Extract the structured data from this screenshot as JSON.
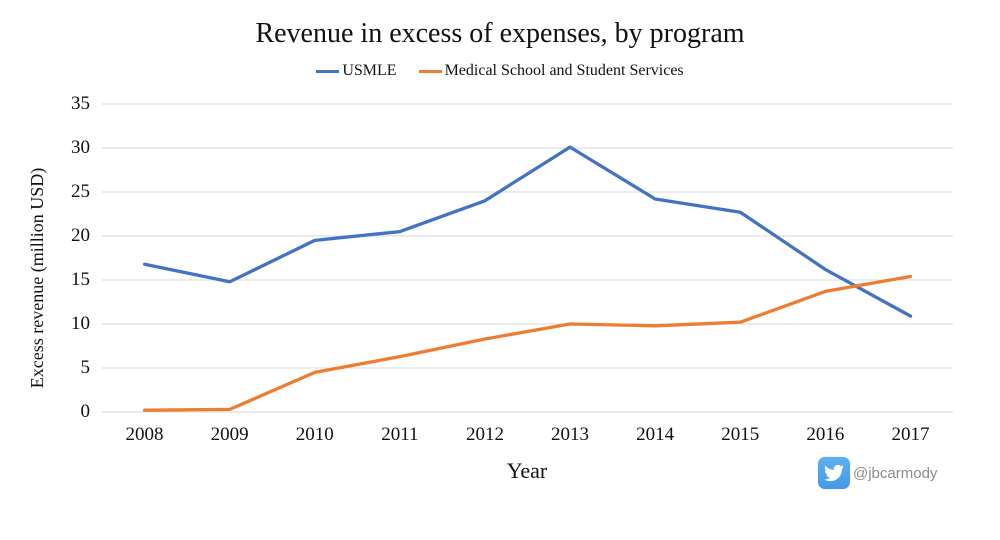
{
  "page": {
    "background": "#ffffff"
  },
  "chart_data": {
    "type": "line",
    "title": "Revenue in excess of expenses, by program",
    "xlabel": "Year",
    "ylabel": "Excess revenue (million USD)",
    "categories": [
      "2008",
      "2009",
      "2010",
      "2011",
      "2012",
      "2013",
      "2014",
      "2015",
      "2016",
      "2017"
    ],
    "series": [
      {
        "name": "USMLE",
        "color": "#4472C4",
        "values": [
          16.8,
          14.8,
          19.5,
          20.5,
          24.0,
          30.1,
          24.2,
          22.7,
          16.2,
          10.9
        ]
      },
      {
        "name": "Medical School and Student Services",
        "color": "#ED7D31",
        "values": [
          0.2,
          0.3,
          4.5,
          6.3,
          8.3,
          10.0,
          9.8,
          10.2,
          13.7,
          15.4
        ]
      }
    ],
    "ylim": [
      0,
      35
    ],
    "yticks": [
      0,
      5,
      10,
      15,
      20,
      25,
      30,
      35
    ],
    "grid": "horizontal",
    "gridline_color": "#D9D9D9",
    "legend_position": "top-center"
  },
  "watermark": {
    "icon": "twitter-icon",
    "icon_color": "#55ACEE",
    "handle": "@jbcarmody"
  }
}
